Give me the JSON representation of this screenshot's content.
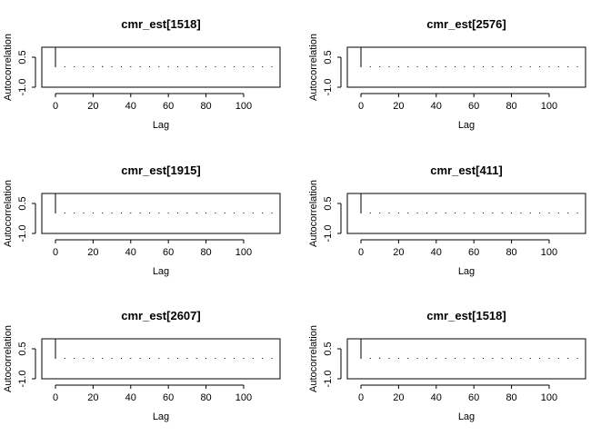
{
  "chart_data": [
    {
      "type": "bar",
      "title": "cmr_est[1518]",
      "xlabel": "Lag",
      "ylabel": "Autocorrelation",
      "xlim": [
        0,
        115
      ],
      "ylim": [
        -1.0,
        1.0
      ],
      "xticks": [
        0,
        20,
        40,
        60,
        80,
        100
      ],
      "yticks": [
        -1.0,
        0.5
      ],
      "ytick_labels": [
        "-1.0",
        "0.5"
      ],
      "lags": [
        0,
        5,
        10,
        15,
        20,
        25,
        30,
        35,
        40,
        45,
        50,
        55,
        60,
        65,
        70,
        75,
        80,
        85,
        90,
        95,
        100,
        105,
        110,
        115
      ],
      "values": [
        1.0,
        0.02,
        0.01,
        0.02,
        0.01,
        0.06,
        0.02,
        0.01,
        0.02,
        0.01,
        0.02,
        0.01,
        0.02,
        0.03,
        0.02,
        0.01,
        0.02,
        0.01,
        0.02,
        0.01,
        0.02,
        0.01,
        0.02,
        0.01
      ]
    },
    {
      "type": "bar",
      "title": "cmr_est[2576]",
      "xlabel": "Lag",
      "ylabel": "Autocorrelation",
      "xlim": [
        0,
        115
      ],
      "ylim": [
        -1.0,
        1.0
      ],
      "xticks": [
        0,
        20,
        40,
        60,
        80,
        100
      ],
      "yticks": [
        -1.0,
        0.5
      ],
      "ytick_labels": [
        "-1.0",
        "0.5"
      ],
      "lags": [
        0,
        5,
        10,
        15,
        20,
        25,
        30,
        35,
        40,
        45,
        50,
        55,
        60,
        65,
        70,
        75,
        80,
        85,
        90,
        95,
        100,
        105,
        110,
        115
      ],
      "values": [
        1.0,
        0.03,
        0.01,
        0.02,
        0.01,
        0.02,
        0.01,
        0.02,
        0.01,
        0.02,
        0.01,
        0.02,
        0.01,
        0.02,
        0.01,
        0.02,
        0.01,
        0.02,
        0.01,
        0.02,
        0.03,
        0.02,
        0.03,
        0.02
      ]
    },
    {
      "type": "bar",
      "title": "cmr_est[1915]",
      "xlabel": "Lag",
      "ylabel": "Autocorrelation",
      "xlim": [
        0,
        115
      ],
      "ylim": [
        -1.0,
        1.0
      ],
      "xticks": [
        0,
        20,
        40,
        60,
        80,
        100
      ],
      "yticks": [
        -1.0,
        0.5
      ],
      "ytick_labels": [
        "-1.0",
        "0.5"
      ],
      "lags": [
        0,
        5,
        10,
        15,
        20,
        25,
        30,
        35,
        40,
        45,
        50,
        55,
        60,
        65,
        70,
        75,
        80,
        85,
        90,
        95,
        100,
        105,
        110,
        115
      ],
      "values": [
        1.0,
        0.02,
        0.01,
        0.02,
        0.01,
        0.03,
        0.02,
        0.01,
        0.02,
        0.01,
        0.02,
        0.01,
        0.02,
        0.01,
        0.02,
        0.01,
        0.02,
        0.01,
        0.02,
        0.03,
        0.02,
        0.01,
        0.02,
        0.01
      ]
    },
    {
      "type": "bar",
      "title": "cmr_est[411]",
      "xlabel": "Lag",
      "ylabel": "Autocorrelation",
      "xlim": [
        0,
        115
      ],
      "ylim": [
        -1.0,
        1.0
      ],
      "xticks": [
        0,
        20,
        40,
        60,
        80,
        100
      ],
      "yticks": [
        -1.0,
        0.5
      ],
      "ytick_labels": [
        "-1.0",
        "0.5"
      ],
      "lags": [
        0,
        5,
        10,
        15,
        20,
        25,
        30,
        35,
        40,
        45,
        50,
        55,
        60,
        65,
        70,
        75,
        80,
        85,
        90,
        95,
        100,
        105,
        110,
        115
      ],
      "values": [
        1.0,
        0.02,
        0.01,
        0.02,
        0.01,
        0.02,
        0.01,
        0.02,
        0.01,
        0.02,
        0.01,
        0.02,
        0.01,
        0.02,
        0.03,
        0.02,
        0.01,
        0.02,
        0.01,
        0.02,
        0.01,
        0.02,
        0.01,
        0.02
      ]
    },
    {
      "type": "bar",
      "title": "cmr_est[2607]",
      "xlabel": "Lag",
      "ylabel": "Autocorrelation",
      "xlim": [
        0,
        115
      ],
      "ylim": [
        -1.0,
        1.0
      ],
      "xticks": [
        0,
        20,
        40,
        60,
        80,
        100
      ],
      "yticks": [
        -1.0,
        0.5
      ],
      "ytick_labels": [
        "-1.0",
        "0.5"
      ],
      "lags": [
        0,
        5,
        10,
        15,
        20,
        25,
        30,
        35,
        40,
        45,
        50,
        55,
        60,
        65,
        70,
        75,
        80,
        85,
        90,
        95,
        100,
        105,
        110,
        115
      ],
      "values": [
        1.0,
        0.02,
        0.01,
        0.02,
        0.01,
        0.02,
        0.03,
        0.01,
        0.02,
        0.01,
        0.02,
        0.03,
        0.02,
        0.01,
        0.02,
        0.01,
        0.02,
        0.01,
        0.02,
        0.01,
        0.02,
        0.01,
        0.02,
        0.01
      ]
    },
    {
      "type": "bar",
      "title": "cmr_est[1518]",
      "xlabel": "Lag",
      "ylabel": "Autocorrelation",
      "xlim": [
        0,
        115
      ],
      "ylim": [
        -1.0,
        1.0
      ],
      "xticks": [
        0,
        20,
        40,
        60,
        80,
        100
      ],
      "yticks": [
        -1.0,
        0.5
      ],
      "ytick_labels": [
        "-1.0",
        "0.5"
      ],
      "lags": [
        0,
        5,
        10,
        15,
        20,
        25,
        30,
        35,
        40,
        45,
        50,
        55,
        60,
        65,
        70,
        75,
        80,
        85,
        90,
        95,
        100,
        105,
        110,
        115
      ],
      "values": [
        1.0,
        0.04,
        0.06,
        0.04,
        0.03,
        0.04,
        0.03,
        0.04,
        0.03,
        0.02,
        0.03,
        0.02,
        0.03,
        0.02,
        0.03,
        0.02,
        0.03,
        0.02,
        0.03,
        0.02,
        0.03,
        0.02,
        0.03,
        0.02
      ]
    }
  ]
}
